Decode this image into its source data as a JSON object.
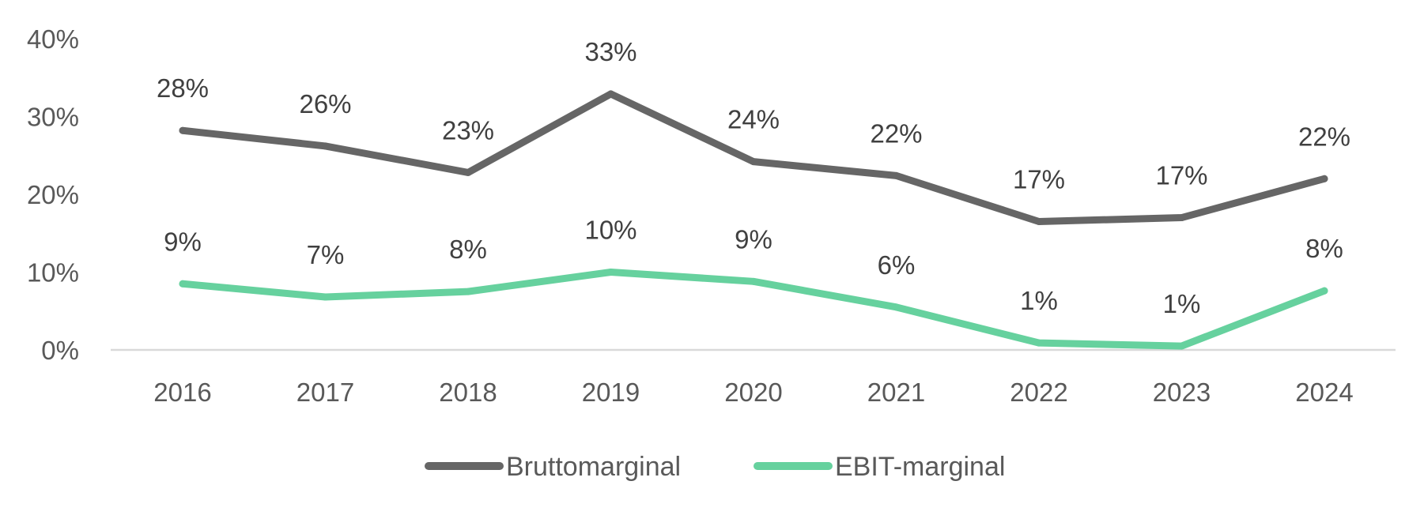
{
  "chart_data": {
    "type": "line",
    "categories": [
      "2016",
      "2017",
      "2018",
      "2019",
      "2020",
      "2021",
      "2022",
      "2023",
      "2024"
    ],
    "y_ticks": [
      "0%",
      "10%",
      "20%",
      "30%",
      "40%"
    ],
    "ylim": [
      0,
      40
    ],
    "grid": false,
    "legend_position": "bottom",
    "series": [
      {
        "name": "Bruttomarginal",
        "color": "#666666",
        "values": [
          28.2,
          26.2,
          22.8,
          32.9,
          24.2,
          22.4,
          16.5,
          17.0,
          22.0
        ],
        "labels": [
          "28%",
          "26%",
          "23%",
          "33%",
          "24%",
          "22%",
          "17%",
          "17%",
          "22%"
        ]
      },
      {
        "name": "EBIT-marginal",
        "color": "#66d19e",
        "values": [
          8.5,
          6.8,
          7.5,
          10.0,
          8.8,
          5.5,
          0.9,
          0.5,
          7.6
        ],
        "labels": [
          "9%",
          "7%",
          "8%",
          "10%",
          "9%",
          "6%",
          "1%",
          "1%",
          "8%"
        ]
      }
    ]
  }
}
